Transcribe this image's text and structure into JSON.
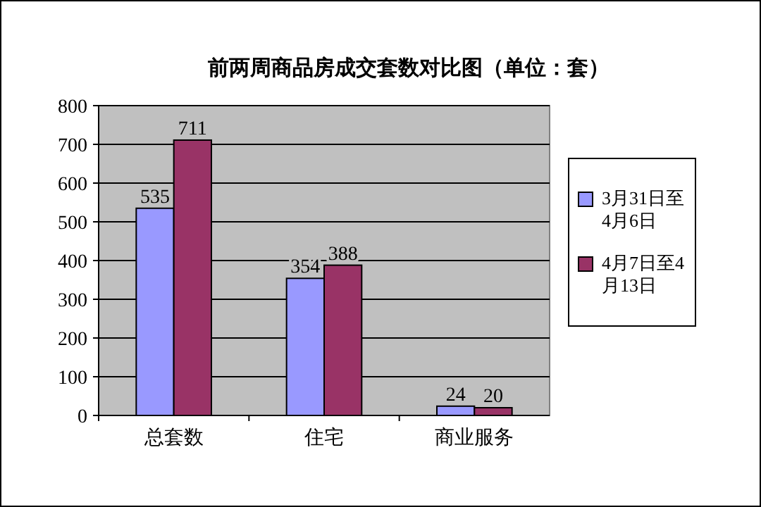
{
  "chart_data": {
    "type": "bar",
    "title": "前两周商品房成交套数对比图（单位：套）",
    "categories": [
      "总套数",
      "住宅",
      "商业服务"
    ],
    "series": [
      {
        "name": "3月31日至4月6日",
        "color": "#9999ff",
        "values": [
          535,
          354,
          24
        ]
      },
      {
        "name": "4月7日至4月13日",
        "color": "#993366",
        "values": [
          711,
          388,
          20
        ]
      }
    ],
    "ylim": [
      0,
      800
    ],
    "yticks": [
      0,
      100,
      200,
      300,
      400,
      500,
      600,
      700,
      800
    ],
    "grid": "y",
    "legend": "right",
    "data_labels": true
  }
}
